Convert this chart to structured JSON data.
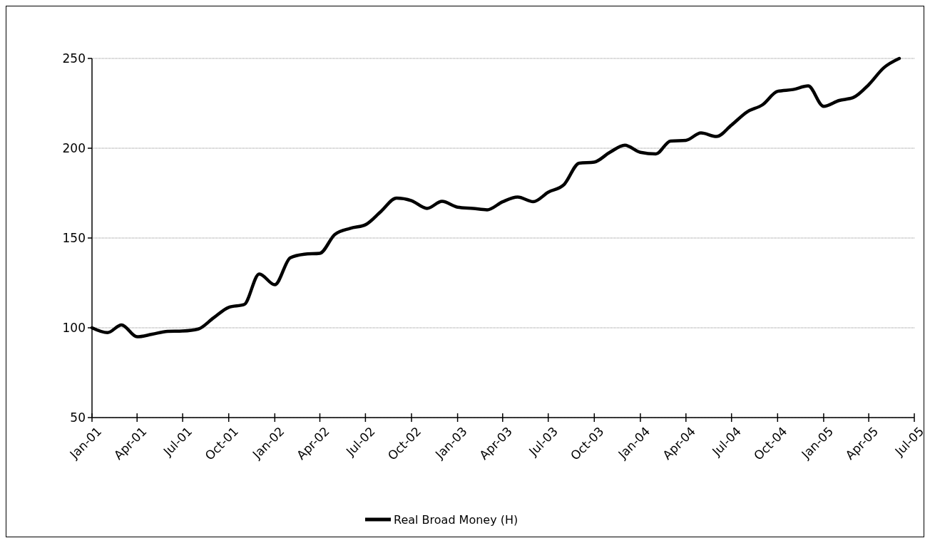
{
  "chart_data": {
    "type": "line",
    "x": [
      "2001-01",
      "2001-02",
      "2001-03",
      "2001-04",
      "2001-05",
      "2001-06",
      "2001-07",
      "2001-08",
      "2001-09",
      "2001-10",
      "2001-11",
      "2001-12",
      "2002-01",
      "2002-02",
      "2002-03",
      "2002-04",
      "2002-05",
      "2002-06",
      "2002-07",
      "2002-08",
      "2002-09",
      "2002-10",
      "2002-11",
      "2002-12",
      "2003-01",
      "2003-02",
      "2003-03",
      "2003-04",
      "2003-05",
      "2003-06",
      "2003-07",
      "2003-08",
      "2003-09",
      "2003-10",
      "2003-11",
      "2003-12",
      "2004-01",
      "2004-02",
      "2004-03",
      "2004-04",
      "2004-05",
      "2004-06",
      "2004-07",
      "2004-08",
      "2004-09",
      "2004-10",
      "2004-11",
      "2004-12",
      "2005-01",
      "2005-02",
      "2005-03",
      "2005-04",
      "2005-05",
      "2005-06"
    ],
    "series": [
      {
        "name": "Real Broad Money (H)",
        "color": "#000000",
        "values": [
          100,
          97.3,
          101.6,
          95,
          96.4,
          98,
          98.2,
          99.3,
          105.6,
          111.4,
          113,
          130,
          124,
          139,
          141,
          141.5,
          152,
          155.4,
          157.4,
          164.8,
          172.2,
          170.8,
          166.5,
          170.4,
          167.2,
          166.5,
          165.7,
          170.2,
          172.8,
          170.2,
          175.5,
          179.6,
          191.7,
          192.3,
          197.7,
          201.7,
          197.7,
          196.8,
          204,
          204.4,
          208.5,
          206.5,
          212.9,
          220.2,
          224.2,
          231.7,
          232.7,
          234.7,
          223.3,
          226.6,
          228.2,
          235.4,
          244.8,
          250
        ]
      }
    ],
    "xlim": [
      "2001-01",
      "2005-07"
    ],
    "xticks": [
      {
        "value": "2001-01",
        "label": "Jan-01"
      },
      {
        "value": "2001-04",
        "label": "Apr-01"
      },
      {
        "value": "2001-07",
        "label": "Jul-01"
      },
      {
        "value": "2001-10",
        "label": "Oct-01"
      },
      {
        "value": "2002-01",
        "label": "Jan-02"
      },
      {
        "value": "2002-04",
        "label": "Apr-02"
      },
      {
        "value": "2002-07",
        "label": "Jul-02"
      },
      {
        "value": "2002-10",
        "label": "Oct-02"
      },
      {
        "value": "2003-01",
        "label": "Jan-03"
      },
      {
        "value": "2003-04",
        "label": "Apr-03"
      },
      {
        "value": "2003-07",
        "label": "Jul-03"
      },
      {
        "value": "2003-10",
        "label": "Oct-03"
      },
      {
        "value": "2004-01",
        "label": "Jan-04"
      },
      {
        "value": "2004-04",
        "label": "Apr-04"
      },
      {
        "value": "2004-07",
        "label": "Jul-04"
      },
      {
        "value": "2004-10",
        "label": "Oct-04"
      },
      {
        "value": "2005-01",
        "label": "Jan-05"
      },
      {
        "value": "2005-04",
        "label": "Apr-05"
      },
      {
        "value": "2005-07",
        "label": "Jul-05"
      }
    ],
    "ylim": [
      50,
      250
    ],
    "yticks": [
      50,
      100,
      150,
      200,
      250
    ],
    "grid": "y",
    "legend": "bottom",
    "line_style": "solid",
    "marker": "none"
  }
}
